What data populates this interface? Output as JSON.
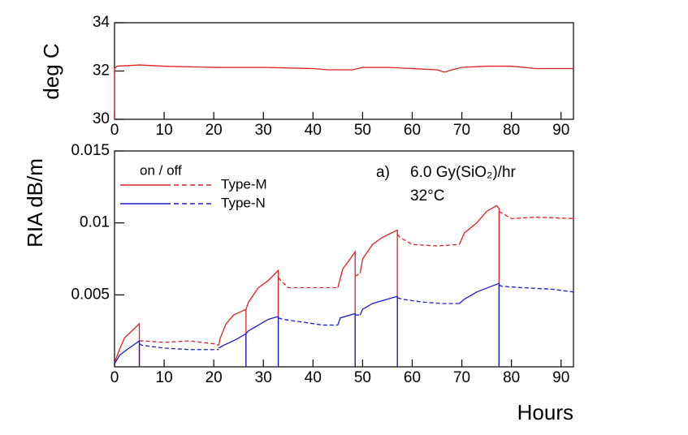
{
  "chart_data": [
    {
      "type": "line",
      "ylabel": "deg C",
      "xlim": [
        0,
        92.5
      ],
      "ylim": [
        30,
        34
      ],
      "xticks": [
        0,
        10,
        20,
        30,
        40,
        50,
        60,
        70,
        80,
        90
      ],
      "yticks": [
        30,
        32,
        34
      ],
      "series": [
        {
          "color": "#e02020",
          "x": [
            0,
            0,
            0.5,
            5,
            10,
            20,
            30,
            40,
            43,
            45,
            48,
            50,
            55,
            60,
            65,
            66.5,
            68,
            70,
            75,
            80,
            85,
            92.5
          ],
          "values": [
            30,
            32.1,
            32.2,
            32.25,
            32.2,
            32.15,
            32.15,
            32.1,
            32.05,
            32.05,
            32.05,
            32.15,
            32.15,
            32.1,
            32.05,
            31.95,
            32.05,
            32.15,
            32.2,
            32.2,
            32.1,
            32.1
          ]
        }
      ]
    },
    {
      "type": "line",
      "ylabel": "RIA dB/m",
      "xlabel": "Hours",
      "legend_title": "on / off",
      "annotations": [
        "a)",
        "6.0 Gy(SiO₂)/hr",
        "32°C"
      ],
      "xlim": [
        0,
        92.5
      ],
      "ylim": [
        0,
        0.015
      ],
      "xticks": [
        0,
        10,
        20,
        30,
        40,
        50,
        60,
        70,
        80,
        90
      ],
      "yticks": [
        0.005,
        0.01,
        0.015
      ],
      "series": [
        {
          "name": "Type-M",
          "color": "#e02020",
          "pieces": [
            {
              "style": "solid",
              "x": [
                0,
                1,
                2,
                3.5,
                5,
                5
              ],
              "values": [
                0.0003,
                0.0012,
                0.002,
                0.0025,
                0.003,
                0
              ]
            },
            {
              "style": "dashed",
              "x": [
                5,
                6,
                10,
                15,
                20,
                21
              ],
              "values": [
                0.0018,
                0.0018,
                0.0017,
                0.0018,
                0.0016,
                0.0015
              ]
            },
            {
              "style": "solid",
              "x": [
                21,
                21.3,
                22.5,
                24,
                26.5,
                26.5
              ],
              "values": [
                0.0015,
                0.002,
                0.003,
                0.0036,
                0.004,
                0
              ]
            },
            {
              "style": "solid",
              "x": [
                26.5,
                27,
                29,
                31,
                33,
                33
              ],
              "values": [
                0.004,
                0.0045,
                0.0055,
                0.006,
                0.0067,
                0
              ]
            },
            {
              "style": "dashed",
              "x": [
                33,
                33.5,
                35,
                40,
                45
              ],
              "values": [
                0.0062,
                0.006,
                0.0055,
                0.0055,
                0.0055
              ]
            },
            {
              "style": "solid",
              "x": [
                45,
                46,
                47.5,
                48.5,
                48.5
              ],
              "values": [
                0.0055,
                0.0068,
                0.0075,
                0.008,
                0
              ]
            },
            {
              "style": "dashed",
              "x": [
                48.5,
                49.5
              ],
              "values": [
                0.0063,
                0.0065
              ]
            },
            {
              "style": "solid",
              "x": [
                49.5,
                50,
                52,
                54,
                57,
                57
              ],
              "values": [
                0.0065,
                0.0075,
                0.0085,
                0.009,
                0.0095,
                0
              ]
            },
            {
              "style": "dashed",
              "x": [
                57,
                57.5,
                60,
                65,
                69.5
              ],
              "values": [
                0.0092,
                0.009,
                0.0085,
                0.0084,
                0.0085
              ]
            },
            {
              "style": "solid",
              "x": [
                69.5,
                70.5,
                73,
                75,
                77,
                77.5,
                77.5
              ],
              "values": [
                0.0085,
                0.0093,
                0.01,
                0.0108,
                0.0112,
                0.011,
                0
              ]
            },
            {
              "style": "dashed",
              "x": [
                77.5,
                78,
                80,
                85,
                92.5
              ],
              "values": [
                0.0108,
                0.0107,
                0.0103,
                0.0104,
                0.0103
              ]
            }
          ]
        },
        {
          "name": "Type-N",
          "color": "#1a1ad0",
          "pieces": [
            {
              "style": "solid",
              "x": [
                0,
                1,
                2.5,
                5,
                5
              ],
              "values": [
                0.0002,
                0.0008,
                0.0012,
                0.0018,
                0
              ]
            },
            {
              "style": "dashed",
              "x": [
                5,
                5.5,
                10,
                15,
                21
              ],
              "values": [
                0.0016,
                0.0015,
                0.0013,
                0.0012,
                0.0012
              ]
            },
            {
              "style": "solid",
              "x": [
                21,
                22,
                24.5,
                26.5,
                26.5
              ],
              "values": [
                0.0013,
                0.0015,
                0.0019,
                0.0023,
                0
              ]
            },
            {
              "style": "solid",
              "x": [
                26.5,
                27,
                29,
                31,
                33,
                33
              ],
              "values": [
                0.0023,
                0.0025,
                0.0029,
                0.0033,
                0.0035,
                0
              ]
            },
            {
              "style": "dashed",
              "x": [
                33,
                34,
                38,
                42,
                45
              ],
              "values": [
                0.0034,
                0.0033,
                0.0031,
                0.0029,
                0.0029
              ]
            },
            {
              "style": "solid",
              "x": [
                45,
                45.5,
                48.5,
                48.5
              ],
              "values": [
                0.0029,
                0.0034,
                0.0037,
                0
              ]
            },
            {
              "style": "dashed",
              "x": [
                48.5,
                49.5
              ],
              "values": [
                0.0036,
                0.0036
              ]
            },
            {
              "style": "solid",
              "x": [
                49.5,
                50,
                52,
                55,
                57,
                57
              ],
              "values": [
                0.0036,
                0.004,
                0.0044,
                0.0047,
                0.0049,
                0
              ]
            },
            {
              "style": "dashed",
              "x": [
                57,
                58,
                62,
                66,
                69.5
              ],
              "values": [
                0.0048,
                0.0047,
                0.0045,
                0.0044,
                0.0044
              ]
            },
            {
              "style": "solid",
              "x": [
                69.5,
                70.5,
                73,
                76,
                77.5,
                77.5
              ],
              "values": [
                0.0044,
                0.0047,
                0.0052,
                0.0056,
                0.0058,
                0
              ]
            },
            {
              "style": "dashed",
              "x": [
                77.5,
                78,
                82,
                88,
                92.5
              ],
              "values": [
                0.0057,
                0.0056,
                0.0055,
                0.0054,
                0.0052
              ]
            }
          ]
        }
      ]
    }
  ]
}
